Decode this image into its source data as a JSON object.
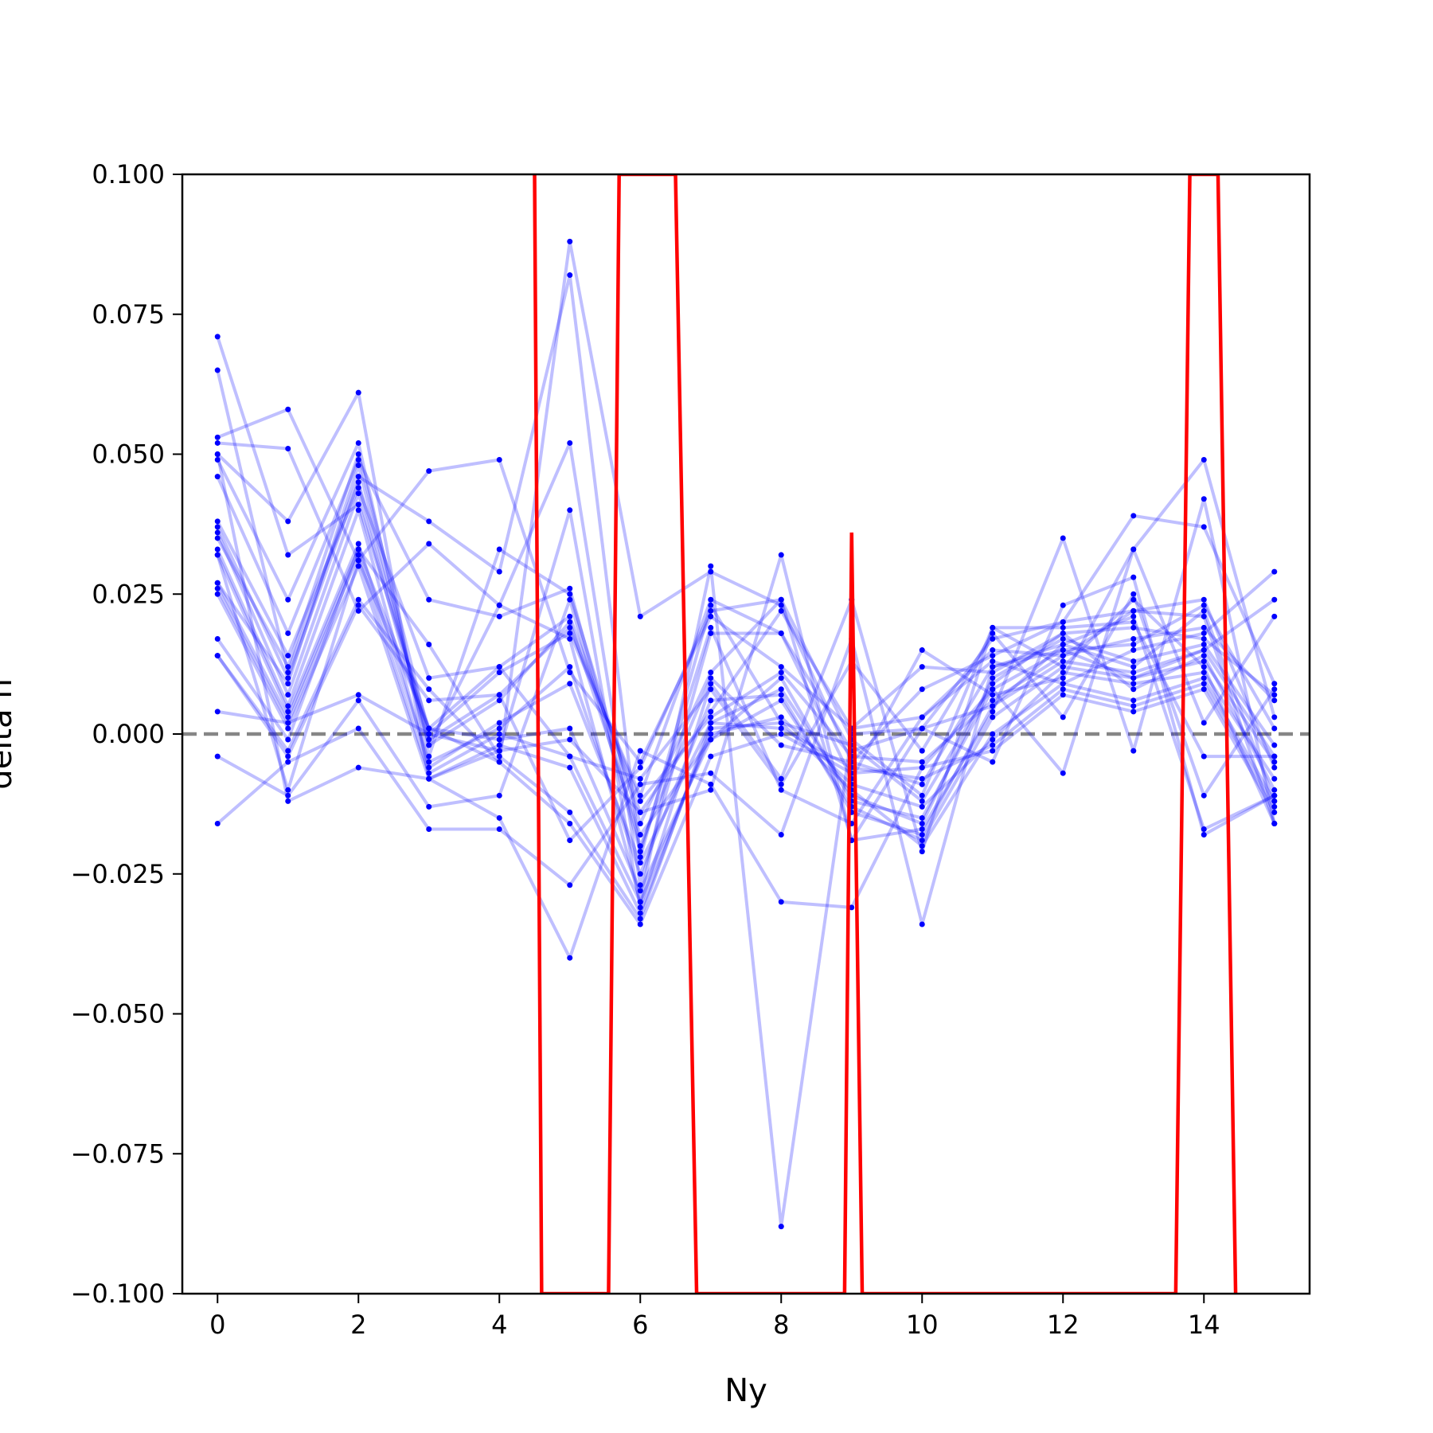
{
  "chart_data": {
    "type": "line",
    "title": "",
    "xlabel": "Ny",
    "ylabel": "delta n",
    "xlim": [
      -0.5,
      15.5
    ],
    "ylim": [
      -0.1,
      0.1
    ],
    "xticks": [
      0,
      2,
      4,
      6,
      8,
      10,
      12,
      14
    ],
    "xtick_labels": [
      "0",
      "2",
      "4",
      "6",
      "8",
      "10",
      "12",
      "14"
    ],
    "yticks": [
      -0.1,
      -0.075,
      -0.05,
      -0.025,
      0.0,
      0.025,
      0.05,
      0.075,
      0.1
    ],
    "ytick_labels": [
      "−0.100",
      "−0.075",
      "−0.050",
      "−0.025",
      "0.000",
      "0.025",
      "0.050",
      "0.075",
      "0.100"
    ],
    "grid": false,
    "legend": "none",
    "reference_line": {
      "y": 0.0,
      "style": "dashed",
      "color": "#808080"
    },
    "colors": {
      "samples": "#0000ff",
      "mean": "#ff0000",
      "reference": "#808080"
    },
    "x": [
      0,
      1,
      2,
      3,
      4,
      5,
      6,
      7,
      8,
      9,
      10,
      11,
      12,
      13,
      14,
      15
    ],
    "series": [
      {
        "values": [
          0.071,
          0.032,
          0.041,
          0.001,
          -0.005,
          0.088,
          0.021,
          0.029,
          0.023,
          -0.005,
          -0.009,
          0.012,
          0.016,
          0.012,
          0.022,
          -0.012
        ]
      },
      {
        "values": [
          0.065,
          0.011,
          0.046,
          0.038,
          0.029,
          0.082,
          -0.022,
          0.023,
          0.002,
          -0.002,
          -0.012,
          0.009,
          0.018,
          0.008,
          0.014,
          -0.01
        ]
      },
      {
        "values": [
          0.053,
          0.058,
          0.031,
          0.047,
          0.049,
          0.011,
          -0.005,
          0.021,
          0.012,
          0.001,
          0.003,
          0.015,
          0.014,
          0.022,
          0.024,
          -0.006
        ]
      },
      {
        "values": [
          0.052,
          0.051,
          0.022,
          0.034,
          0.023,
          0.052,
          -0.027,
          0.018,
          0.018,
          -0.008,
          0.015,
          0.007,
          0.01,
          0.033,
          0.049,
          0.003
        ]
      },
      {
        "values": [
          0.05,
          0.038,
          0.061,
          -0.008,
          -0.003,
          0.04,
          -0.031,
          0.009,
          -0.008,
          0.024,
          -0.021,
          0.019,
          0.012,
          0.024,
          0.012,
          -0.016
        ]
      },
      {
        "values": [
          0.049,
          0.024,
          0.052,
          -0.004,
          0.033,
          0.025,
          -0.016,
          0.011,
          0.024,
          -0.019,
          -0.017,
          0.004,
          0.035,
          -0.003,
          0.042,
          -0.016
        ]
      },
      {
        "values": [
          0.046,
          0.018,
          0.049,
          0.024,
          0.021,
          0.026,
          -0.02,
          0.01,
          -0.002,
          -0.005,
          0.008,
          0.014,
          0.02,
          0.039,
          0.037,
          0.009
        ]
      },
      {
        "values": [
          0.038,
          0.014,
          0.044,
          0.01,
          0.012,
          0.021,
          -0.014,
          0.004,
          0.022,
          0.001,
          0.012,
          0.011,
          0.018,
          0.019,
          0.017,
          0.007
        ]
      },
      {
        "values": [
          0.037,
          0.01,
          0.045,
          -0.001,
          0.007,
          0.019,
          -0.012,
          0.003,
          0.011,
          -0.004,
          -0.005,
          0.006,
          0.014,
          0.017,
          0.019,
          0.006
        ]
      },
      {
        "values": [
          0.036,
          0.007,
          0.043,
          -0.002,
          0.006,
          0.02,
          -0.018,
          -0.001,
          0.01,
          -0.012,
          -0.015,
          0.008,
          0.015,
          0.016,
          0.023,
          0.001
        ]
      },
      {
        "values": [
          0.033,
          0.005,
          0.04,
          -0.006,
          0.002,
          0.009,
          -0.023,
          0.002,
          0.008,
          -0.011,
          -0.016,
          0.01,
          0.017,
          0.013,
          0.016,
          -0.002
        ]
      },
      {
        "values": [
          0.032,
          0.004,
          0.034,
          -0.005,
          0.001,
          0.012,
          -0.025,
          0.006,
          0.007,
          -0.014,
          -0.018,
          0.005,
          0.013,
          0.011,
          0.015,
          -0.004
        ]
      },
      {
        "values": [
          0.027,
          0.003,
          0.033,
          0.001,
          -0.001,
          0.001,
          -0.028,
          -0.001,
          0.006,
          -0.013,
          -0.019,
          0.003,
          0.012,
          0.01,
          0.013,
          -0.005
        ]
      },
      {
        "values": [
          0.026,
          0.002,
          0.032,
          -0.007,
          0.0,
          -0.004,
          -0.03,
          0.0,
          0.003,
          -0.009,
          -0.013,
          -0.001,
          0.011,
          0.009,
          0.011,
          -0.008
        ]
      },
      {
        "values": [
          0.025,
          0.001,
          0.03,
          -0.008,
          -0.002,
          -0.006,
          -0.032,
          0.001,
          0.002,
          -0.01,
          -0.02,
          0.0,
          0.009,
          0.006,
          0.01,
          -0.012
        ]
      },
      {
        "values": [
          0.017,
          -0.001,
          0.033,
          0.016,
          -0.004,
          -0.014,
          -0.033,
          0.002,
          0.001,
          -0.006,
          -0.008,
          -0.002,
          0.008,
          0.005,
          0.009,
          -0.013
        ]
      },
      {
        "values": [
          0.014,
          -0.003,
          0.024,
          0.008,
          -0.005,
          -0.016,
          -0.034,
          -0.004,
          0.0,
          -0.007,
          -0.006,
          -0.003,
          0.007,
          0.004,
          0.008,
          -0.014
        ]
      },
      {
        "values": [
          0.014,
          -0.004,
          0.023,
          0.006,
          0.007,
          -0.019,
          -0.006,
          0.022,
          0.024,
          -0.001,
          -0.011,
          0.019,
          0.019,
          0.02,
          -0.004,
          -0.004
        ]
      },
      {
        "values": [
          0.004,
          0.002,
          0.007,
          0.0,
          0.011,
          0.018,
          -0.011,
          0.024,
          0.018,
          -0.003,
          0.001,
          0.017,
          0.02,
          0.022,
          0.021,
          -0.016
        ]
      },
      {
        "values": [
          -0.004,
          -0.011,
          0.006,
          -0.013,
          -0.011,
          0.024,
          -0.021,
          0.019,
          -0.01,
          -0.016,
          0.003,
          0.013,
          0.009,
          0.015,
          0.018,
          0.029
        ]
      },
      {
        "values": [
          -0.016,
          -0.005,
          0.001,
          -0.017,
          -0.017,
          -0.027,
          -0.009,
          -0.007,
          -0.018,
          0.017,
          -0.034,
          0.012,
          0.015,
          0.01,
          0.015,
          0.024
        ]
      },
      {
        "values": [
          0.05,
          -0.012,
          -0.006,
          -0.008,
          -0.015,
          -0.04,
          -0.003,
          -0.009,
          -0.03,
          -0.031,
          -0.006,
          0.008,
          -0.007,
          0.033,
          0.002,
          0.021
        ]
      },
      {
        "values": [
          0.027,
          0.009,
          0.048,
          -0.002,
          0.023,
          0.017,
          -0.03,
          0.03,
          -0.088,
          0.0,
          0.001,
          -0.005,
          0.023,
          0.028,
          -0.018,
          -0.011
        ]
      },
      {
        "values": [
          0.035,
          0.012,
          0.05,
          0.0,
          -0.003,
          -0.001,
          -0.014,
          -0.01,
          0.032,
          -0.019,
          0.001,
          0.005,
          0.016,
          0.021,
          -0.017,
          -0.011
        ]
      },
      {
        "values": [
          0.032,
          -0.01,
          0.031,
          0.001,
          0.012,
          -0.004,
          -0.008,
          0.008,
          -0.009,
          0.013,
          -0.003,
          0.018,
          0.003,
          0.025,
          -0.011,
          0.008
        ]
      }
    ],
    "mean_line": {
      "x": [
        4.5,
        4.6,
        5.55,
        5.7,
        6.5,
        6.8,
        8.9,
        9.0,
        9.15,
        13.6,
        13.8,
        14.2,
        14.45
      ],
      "y": [
        0.1,
        -0.1,
        -0.1,
        0.1,
        0.1,
        -0.1,
        -0.1,
        0.036,
        -0.1,
        -0.1,
        0.1,
        0.1,
        -0.1
      ]
    }
  }
}
